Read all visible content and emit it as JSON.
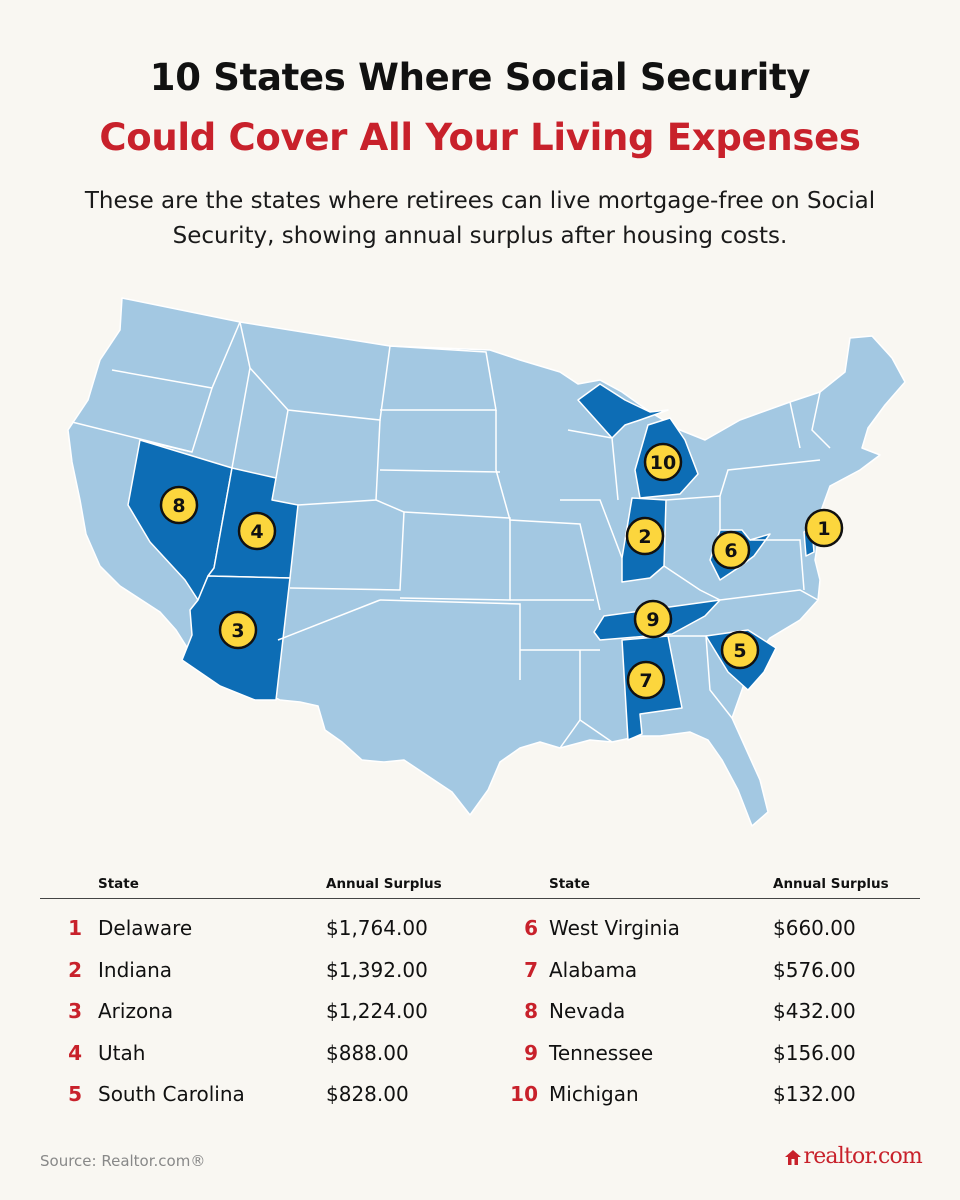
{
  "header": {
    "title_line1": "10 States Where Social Security",
    "title_line2": "Could Cover All Your Living Expenses",
    "subtitle": "These are the states where retirees can live mortgage-free on Social Security, showing annual surplus after housing costs."
  },
  "colors": {
    "base_state": "#a3c8e2",
    "highlight_state": "#0d6db5",
    "border": "#ffffff",
    "badge_fill": "#fcd63d",
    "accent_red": "#c8212b"
  },
  "map": {
    "highlighted_states": [
      "Delaware",
      "Indiana",
      "Arizona",
      "Utah",
      "South Carolina",
      "West Virginia",
      "Alabama",
      "Nevada",
      "Tennessee",
      "Michigan"
    ],
    "badges": [
      {
        "rank": "1",
        "state": "Delaware"
      },
      {
        "rank": "2",
        "state": "Indiana"
      },
      {
        "rank": "3",
        "state": "Arizona"
      },
      {
        "rank": "4",
        "state": "Utah"
      },
      {
        "rank": "5",
        "state": "South Carolina"
      },
      {
        "rank": "6",
        "state": "West Virginia"
      },
      {
        "rank": "7",
        "state": "Alabama"
      },
      {
        "rank": "8",
        "state": "Nevada"
      },
      {
        "rank": "9",
        "state": "Tennessee"
      },
      {
        "rank": "10",
        "state": "Michigan"
      }
    ]
  },
  "table": {
    "col_state": "State",
    "col_surplus": "Annual Surplus",
    "rows": [
      {
        "rank": "1",
        "state": "Delaware",
        "surplus": "$1,764.00"
      },
      {
        "rank": "2",
        "state": "Indiana",
        "surplus": "$1,392.00"
      },
      {
        "rank": "3",
        "state": "Arizona",
        "surplus": "$1,224.00"
      },
      {
        "rank": "4",
        "state": "Utah",
        "surplus": "$888.00"
      },
      {
        "rank": "5",
        "state": "South Carolina",
        "surplus": "$828.00"
      },
      {
        "rank": "6",
        "state": "West Virginia",
        "surplus": "$660.00"
      },
      {
        "rank": "7",
        "state": "Alabama",
        "surplus": "$576.00"
      },
      {
        "rank": "8",
        "state": "Nevada",
        "surplus": "$432.00"
      },
      {
        "rank": "9",
        "state": "Tennessee",
        "surplus": "$156.00"
      },
      {
        "rank": "10",
        "state": "Michigan",
        "surplus": "$132.00"
      }
    ]
  },
  "footer": {
    "source": "Source: Realtor.com®",
    "logo_text": "realtor.com",
    "logo_icon": "house-icon"
  }
}
